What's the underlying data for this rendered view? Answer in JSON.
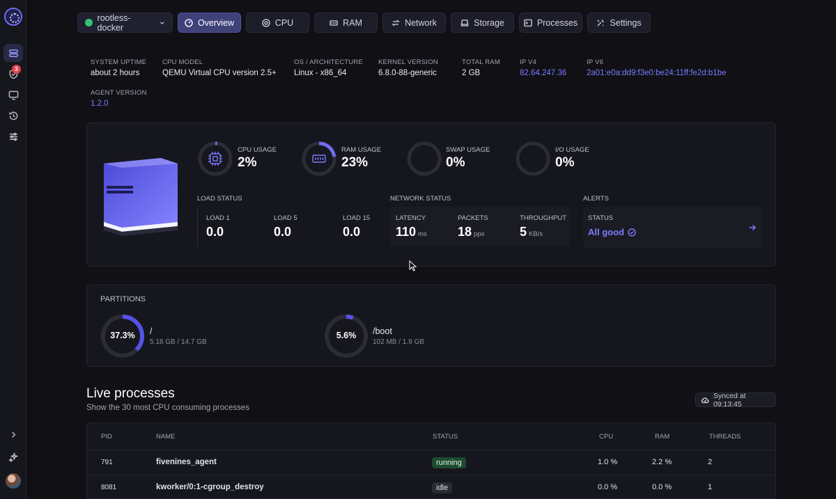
{
  "sidebar": {
    "items": [
      {
        "icon": "servers-icon",
        "active": true
      },
      {
        "icon": "shield-icon",
        "badge": "3"
      },
      {
        "icon": "monitor-icon"
      },
      {
        "icon": "history-icon"
      },
      {
        "icon": "sliders-icon"
      }
    ]
  },
  "nav": {
    "server_name": "rootless-docker",
    "tabs": [
      "Overview",
      "CPU",
      "RAM",
      "Network",
      "Storage",
      "Processes",
      "Settings"
    ],
    "active_tab": "Overview"
  },
  "info": {
    "uptime_label": "SYSTEM UPTIME",
    "uptime": "about 2 hours",
    "cpu_label": "CPU MODEL",
    "cpu": "QEMU Virtual CPU version 2.5+",
    "os_label": "OS / ARCHITECTURE",
    "os": "Linux - x86_64",
    "kernel_label": "KERNEL VERSION",
    "kernel": "6.8.0-88-generic",
    "ram_label": "TOTAL RAM",
    "ram": "2 GB",
    "ipv4_label": "IP V4",
    "ipv4": "82.64.247.36",
    "ipv6_label": "IP V6",
    "ipv6": "2a01:e0a:dd9:f3e0:be24:11ff:fe2d:b1be",
    "agent_label": "AGENT VERSION",
    "agent": "1.2.0"
  },
  "usage": {
    "cpu_label": "CPU USAGE",
    "cpu": "2%",
    "cpu_fraction": 0.02,
    "ram_label": "RAM USAGE",
    "ram": "23%",
    "ram_fraction": 0.23,
    "swap_label": "SWAP USAGE",
    "swap": "0%",
    "swap_fraction": 0,
    "io_label": "I/O USAGE",
    "io": "0%",
    "io_fraction": 0
  },
  "load": {
    "title": "LOAD STATUS",
    "load1_label": "LOAD 1",
    "load1": "0.0",
    "load5_label": "LOAD 5",
    "load5": "0.0",
    "load15_label": "LOAD 15",
    "load15": "0.0"
  },
  "network": {
    "title": "NETWORK STATUS",
    "latency_label": "LATENCY",
    "latency": "110",
    "latency_unit": "ms",
    "packets_label": "PACKETS",
    "packets": "18",
    "packets_unit": "pps",
    "throughput_label": "THROUGHPUT",
    "throughput": "5",
    "throughput_unit": "KB/s"
  },
  "alerts": {
    "title": "ALERTS",
    "status_label": "STATUS",
    "status": "All good"
  },
  "partitions": {
    "title": "PARTITIONS",
    "items": [
      {
        "percent": "37.3%",
        "fraction": 0.373,
        "name": "/",
        "size": "5.18 GB / 14.7 GB"
      },
      {
        "percent": "5.6%",
        "fraction": 0.056,
        "name": "/boot",
        "size": "102 MB / 1.9 GB"
      }
    ]
  },
  "processes": {
    "title": "Live processes",
    "subtitle": "Show the 30 most CPU consuming processes",
    "synced": "Synced at 09:13:45",
    "columns": [
      "PID",
      "NAME",
      "STATUS",
      "CPU",
      "RAM",
      "THREADS"
    ],
    "rows": [
      {
        "pid": "791",
        "name": "fivenines_agent",
        "status": "running",
        "cpu": "1.0 %",
        "ram": "2.2 %",
        "threads": "2"
      },
      {
        "pid": "8081",
        "name": "kworker/0:1-cgroup_destroy",
        "status": "idle",
        "cpu": "0.0 %",
        "ram": "0.0 %",
        "threads": "1"
      }
    ]
  },
  "colors": {
    "accent": "#6f6df0",
    "link": "#7d7cff",
    "running": "#1e4a2f",
    "background": "#101015"
  }
}
